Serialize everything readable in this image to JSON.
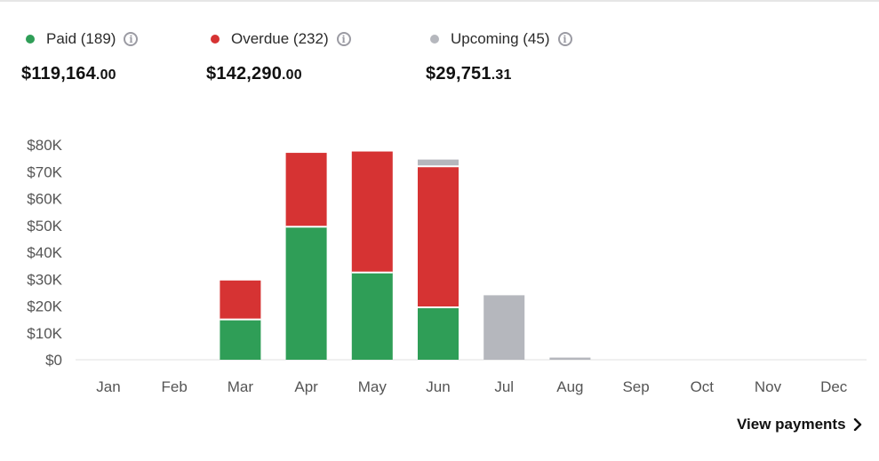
{
  "summary": [
    {
      "label": "Paid (189)",
      "amount_main": "$119,164",
      "amount_cents": ".00",
      "color": "#2f9e57"
    },
    {
      "label": "Overdue (232)",
      "amount_main": "$142,290",
      "amount_cents": ".00",
      "color": "#d63333"
    },
    {
      "label": "Upcoming (45)",
      "amount_main": "$29,751",
      "amount_cents": ".31",
      "color": "#b5b7bd"
    }
  ],
  "link": {
    "view_payments": "View payments"
  },
  "chart_data": {
    "type": "bar",
    "stacked": true,
    "categories": [
      "Jan",
      "Feb",
      "Mar",
      "Apr",
      "May",
      "Jun",
      "Jul",
      "Aug",
      "Sep",
      "Oct",
      "Nov",
      "Dec"
    ],
    "series": [
      {
        "name": "Paid",
        "color": "#2f9e57",
        "values": [
          0,
          0,
          15000,
          49500,
          32500,
          19500,
          0,
          0,
          0,
          0,
          0,
          0
        ]
      },
      {
        "name": "Overdue",
        "color": "#d63333",
        "values": [
          0,
          0,
          14500,
          27500,
          45000,
          52500,
          0,
          0,
          0,
          0,
          0,
          0
        ]
      },
      {
        "name": "Upcoming",
        "color": "#b5b7bd",
        "values": [
          0,
          0,
          0,
          0,
          0,
          2500,
          24000,
          800,
          0,
          0,
          0,
          0
        ]
      }
    ],
    "yticks": [
      "$0",
      "$10K",
      "$20K",
      "$30K",
      "$40K",
      "$50K",
      "$60K",
      "$70K",
      "$80K"
    ],
    "ylim": [
      0,
      80000
    ],
    "grid": false,
    "legend": "top"
  }
}
